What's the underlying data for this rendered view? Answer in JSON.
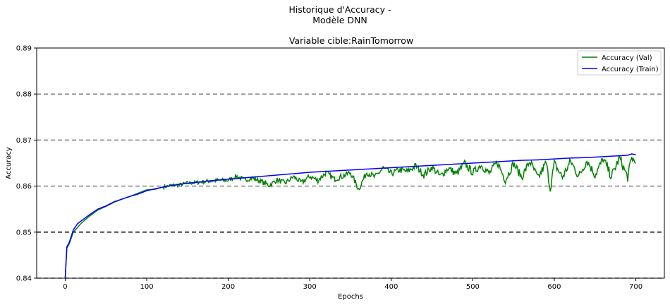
{
  "chart_data": {
    "type": "line",
    "suptitle": [
      "Historique d'Accuracy -",
      "Modèle DNN"
    ],
    "title": "Variable cible:RainTomorrow",
    "xlabel": "Epochs",
    "ylabel": "Accuracy",
    "xlim": [
      -35,
      735
    ],
    "ylim": [
      0.84,
      0.89
    ],
    "xticks": [
      0,
      100,
      200,
      300,
      400,
      500,
      600,
      700
    ],
    "yticks": [
      0.84,
      0.85,
      0.86,
      0.87,
      0.88,
      0.89
    ],
    "xtick_labels": [
      "0",
      "100",
      "200",
      "300",
      "400",
      "500",
      "600",
      "700"
    ],
    "ytick_labels": [
      "0.84",
      "0.85",
      "0.86",
      "0.87",
      "0.88",
      "0.89"
    ],
    "hlines": [
      {
        "y": 0.85,
        "color": "#000000",
        "style": "dashed"
      },
      {
        "y": 0.84,
        "color": "#808080",
        "style": "dashed"
      },
      {
        "y": 0.86,
        "color": "#808080",
        "style": "dashed"
      },
      {
        "y": 0.87,
        "color": "#808080",
        "style": "dashed"
      },
      {
        "y": 0.88,
        "color": "#808080",
        "style": "dashed"
      }
    ],
    "legend_position": "top-right",
    "series": [
      {
        "name": "Accuracy (Val)",
        "color": "#008000",
        "x": [
          0,
          2,
          5,
          10,
          15,
          20,
          30,
          40,
          50,
          60,
          70,
          80,
          90,
          100,
          110,
          120,
          130,
          140,
          150,
          160,
          170,
          180,
          190,
          200,
          210,
          220,
          230,
          240,
          250,
          260,
          270,
          280,
          290,
          300,
          310,
          320,
          330,
          340,
          350,
          360,
          370,
          380,
          390,
          400,
          410,
          420,
          430,
          440,
          450,
          460,
          470,
          480,
          490,
          500,
          510,
          520,
          530,
          540,
          550,
          560,
          570,
          580,
          590,
          595,
          600,
          610,
          620,
          630,
          640,
          650,
          660,
          670,
          680,
          690,
          695,
          700
        ],
        "y": [
          0.84,
          0.8465,
          0.8475,
          0.85,
          0.851,
          0.852,
          0.8535,
          0.8548,
          0.8556,
          0.8565,
          0.8572,
          0.8578,
          0.8585,
          0.8592,
          0.8593,
          0.8598,
          0.8602,
          0.8603,
          0.8607,
          0.8608,
          0.861,
          0.8612,
          0.8613,
          0.8613,
          0.8622,
          0.8614,
          0.8618,
          0.8611,
          0.8602,
          0.8614,
          0.8607,
          0.8621,
          0.8608,
          0.8622,
          0.8613,
          0.863,
          0.8616,
          0.8622,
          0.863,
          0.8594,
          0.8631,
          0.862,
          0.864,
          0.8628,
          0.8636,
          0.8632,
          0.8645,
          0.8625,
          0.8642,
          0.8622,
          0.864,
          0.8627,
          0.865,
          0.863,
          0.8647,
          0.8628,
          0.8653,
          0.8614,
          0.865,
          0.862,
          0.8655,
          0.8618,
          0.8652,
          0.8595,
          0.865,
          0.862,
          0.8655,
          0.8622,
          0.8657,
          0.8625,
          0.866,
          0.8622,
          0.8662,
          0.862,
          0.8663,
          0.865
        ]
      },
      {
        "name": "Accuracy (Train)",
        "color": "#0000ff",
        "x": [
          0,
          2,
          5,
          10,
          15,
          20,
          30,
          40,
          50,
          60,
          70,
          80,
          90,
          100,
          120,
          140,
          160,
          180,
          200,
          220,
          240,
          260,
          280,
          300,
          320,
          340,
          360,
          380,
          400,
          420,
          440,
          460,
          480,
          500,
          520,
          540,
          560,
          580,
          600,
          620,
          640,
          660,
          680,
          690,
          695,
          700
        ],
        "y": [
          0.84,
          0.8468,
          0.8478,
          0.8505,
          0.8518,
          0.8525,
          0.8538,
          0.855,
          0.8557,
          0.8566,
          0.8572,
          0.8578,
          0.8583,
          0.859,
          0.8598,
          0.8604,
          0.8608,
          0.8612,
          0.8615,
          0.8618,
          0.8621,
          0.8624,
          0.8627,
          0.863,
          0.8632,
          0.8634,
          0.8636,
          0.8638,
          0.864,
          0.8642,
          0.8644,
          0.8646,
          0.8648,
          0.865,
          0.8652,
          0.8654,
          0.8656,
          0.8657,
          0.8659,
          0.8661,
          0.8662,
          0.8664,
          0.8666,
          0.8667,
          0.867,
          0.8668
        ]
      }
    ]
  }
}
